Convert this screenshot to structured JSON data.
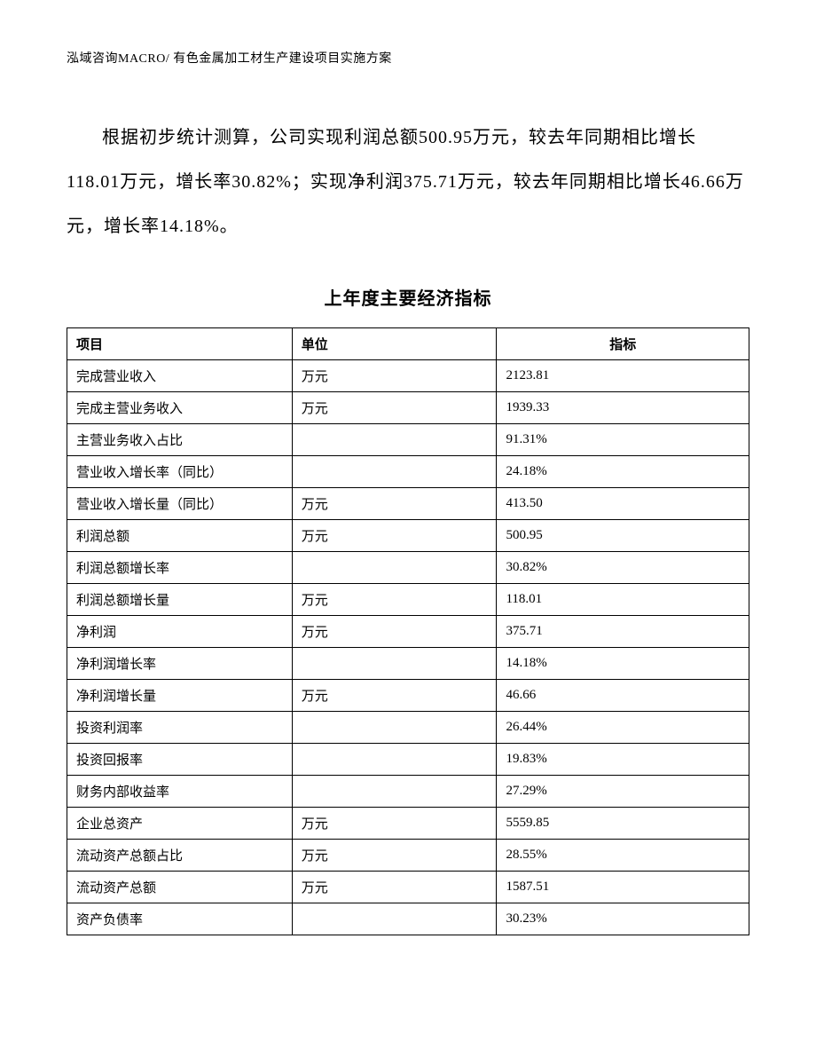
{
  "header": "泓域咨询MACRO/ 有色金属加工材生产建设项目实施方案",
  "paragraph": "根据初步统计测算，公司实现利润总额500.95万元，较去年同期相比增长118.01万元，增长率30.82%；实现净利润375.71万元，较去年同期相比增长46.66万元，增长率14.18%。",
  "table": {
    "title": "上年度主要经济指标",
    "columns": [
      "项目",
      "单位",
      "指标"
    ],
    "rows": [
      {
        "project": "完成营业收入",
        "unit": "万元",
        "indicator": "2123.81"
      },
      {
        "project": "完成主营业务收入",
        "unit": "万元",
        "indicator": "1939.33"
      },
      {
        "project": "主营业务收入占比",
        "unit": "",
        "indicator": "91.31%"
      },
      {
        "project": "营业收入增长率（同比）",
        "unit": "",
        "indicator": "24.18%"
      },
      {
        "project": "营业收入增长量（同比）",
        "unit": "万元",
        "indicator": "413.50"
      },
      {
        "project": "利润总额",
        "unit": "万元",
        "indicator": "500.95"
      },
      {
        "project": "利润总额增长率",
        "unit": "",
        "indicator": "30.82%"
      },
      {
        "project": "利润总额增长量",
        "unit": "万元",
        "indicator": "118.01"
      },
      {
        "project": "净利润",
        "unit": "万元",
        "indicator": "375.71"
      },
      {
        "project": "净利润增长率",
        "unit": "",
        "indicator": "14.18%"
      },
      {
        "project": "净利润增长量",
        "unit": "万元",
        "indicator": "46.66"
      },
      {
        "project": "投资利润率",
        "unit": "",
        "indicator": "26.44%"
      },
      {
        "project": "投资回报率",
        "unit": "",
        "indicator": "19.83%"
      },
      {
        "project": "财务内部收益率",
        "unit": "",
        "indicator": "27.29%"
      },
      {
        "project": "企业总资产",
        "unit": "万元",
        "indicator": "5559.85"
      },
      {
        "project": "流动资产总额占比",
        "unit": "万元",
        "indicator": "28.55%"
      },
      {
        "project": "流动资产总额",
        "unit": "万元",
        "indicator": "1587.51"
      },
      {
        "project": "资产负债率",
        "unit": "",
        "indicator": "30.23%"
      }
    ]
  }
}
